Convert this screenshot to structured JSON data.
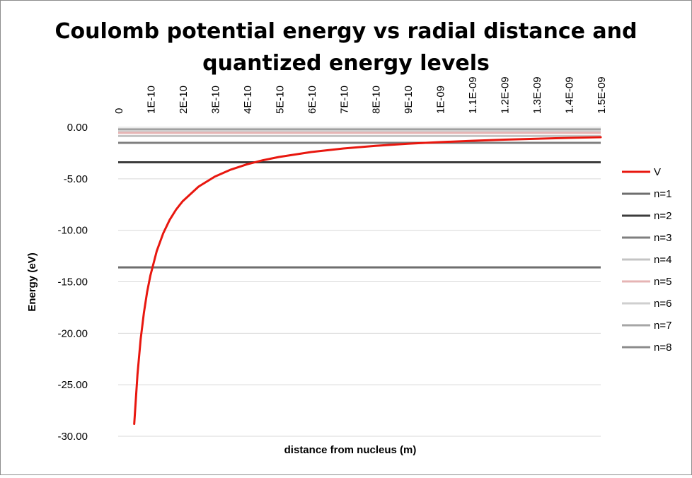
{
  "chart_data": {
    "type": "line",
    "title_lines": [
      "Coulomb potential energy vs radial distance and",
      "quantized energy levels"
    ],
    "xlabel": "distance from nucleus (m)",
    "ylabel": "Energy (eV)",
    "x_ticks": [
      "0",
      "1E-10",
      "2E-10",
      "3E-10",
      "4E-10",
      "5E-10",
      "6E-10",
      "7E-10",
      "8E-10",
      "9E-10",
      "1E-09",
      "1.1E-09",
      "1.2E-09",
      "1.3E-09",
      "1.4E-09",
      "1.5E-09"
    ],
    "x_tick_values": [
      0,
      1e-10,
      2e-10,
      3e-10,
      4e-10,
      5e-10,
      6e-10,
      7e-10,
      8e-10,
      9e-10,
      1e-09,
      1.1e-09,
      1.2e-09,
      1.3e-09,
      1.4e-09,
      1.5e-09
    ],
    "xlim": [
      0,
      1.5e-09
    ],
    "x_axis_position": "top",
    "y_ticks": [
      "0.00",
      "-5.00",
      "-10.00",
      "-15.00",
      "-20.00",
      "-25.00",
      "-30.00"
    ],
    "y_tick_values": [
      0,
      -5,
      -10,
      -15,
      -20,
      -25,
      -30
    ],
    "ylim": [
      -30,
      0
    ],
    "grid": "horizontal",
    "legend_position": "right",
    "series": [
      {
        "name": "V",
        "color": "#e8170f",
        "kind": "curve",
        "x": [
          5e-11,
          6e-11,
          7e-11,
          8e-11,
          9e-11,
          1e-10,
          1.2e-10,
          1.4e-10,
          1.6e-10,
          1.8e-10,
          2e-10,
          2.5e-10,
          3e-10,
          3.5e-10,
          4e-10,
          4.5e-10,
          5e-10,
          6e-10,
          7e-10,
          8e-10,
          9e-10,
          1e-09,
          1.1e-09,
          1.2e-09,
          1.3e-09,
          1.4e-09,
          1.5e-09
        ],
        "values": [
          -28.8,
          -24.0,
          -20.57,
          -18.0,
          -16.0,
          -14.4,
          -12.0,
          -10.29,
          -9.0,
          -8.0,
          -7.2,
          -5.76,
          -4.8,
          -4.11,
          -3.6,
          -3.2,
          -2.88,
          -2.4,
          -2.06,
          -1.8,
          -1.6,
          -1.44,
          -1.31,
          -1.2,
          -1.11,
          -1.03,
          -0.96
        ]
      },
      {
        "name": "n=1",
        "color": "#6e6e6e",
        "kind": "level",
        "value": -13.6
      },
      {
        "name": "n=2",
        "color": "#3c3c3c",
        "kind": "level",
        "value": -3.4
      },
      {
        "name": "n=3",
        "color": "#7f7f7f",
        "kind": "level",
        "value": -1.51
      },
      {
        "name": "n=4",
        "color": "#c4c4c4",
        "kind": "level",
        "value": -0.85
      },
      {
        "name": "n=5",
        "color": "#e6b4b4",
        "kind": "level",
        "value": -0.54
      },
      {
        "name": "n=6",
        "color": "#cfcfcf",
        "kind": "level",
        "value": -0.38
      },
      {
        "name": "n=7",
        "color": "#a6a6a6",
        "kind": "level",
        "value": -0.28
      },
      {
        "name": "n=8",
        "color": "#8c8c8c",
        "kind": "level",
        "value": -0.21
      }
    ]
  }
}
